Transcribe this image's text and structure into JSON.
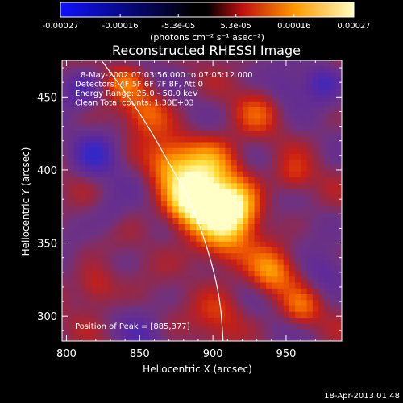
{
  "chart_data": {
    "type": "heatmap",
    "title": "Reconstructed RHESSI Image",
    "xlabel": "Heliocentric X (arcsec)",
    "ylabel": "Heliocentric Y (arcsec)",
    "xlim": [
      797,
      988
    ],
    "ylim": [
      283,
      475
    ],
    "x_ticks": [
      800,
      850,
      900,
      950
    ],
    "y_ticks": [
      300,
      350,
      400,
      450
    ],
    "colorbar": {
      "range": [
        -0.00027,
        0.00027
      ],
      "tick_values": [
        -0.00027,
        -0.00016,
        -5.3e-05,
        5.3e-05,
        0.00016,
        0.00027
      ],
      "tick_labels": [
        "-0.00027",
        "-0.00016",
        "-5.3e-05",
        "5.3e-05",
        "0.00016",
        "0.00027"
      ],
      "unit": "(photons cm⁻² s⁻¹ asec⁻²)"
    },
    "annotations": [
      "8-May-2002 07:03:56.000 to 07:05:12.000",
      "Detectors: 4F 5F 6F 7F 8F, Att 0",
      "Energy Range: 25.0 - 50.0 keV",
      "Clean    Total counts: 1.30E+03"
    ],
    "peak_label": "Position of Peak = [885,377]",
    "peak": [
      885,
      377
    ],
    "sources": [
      {
        "x": 885,
        "y": 377,
        "amp": 1.0,
        "sigma": 13
      },
      {
        "x": 913,
        "y": 374,
        "amp": 0.95,
        "sigma": 13
      },
      {
        "x": 898,
        "y": 402,
        "amp": 0.65,
        "sigma": 15
      },
      {
        "x": 870,
        "y": 405,
        "amp": 0.5,
        "sigma": 12
      },
      {
        "x": 905,
        "y": 350,
        "amp": 0.45,
        "sigma": 14
      },
      {
        "x": 855,
        "y": 440,
        "amp": 0.45,
        "sigma": 11
      },
      {
        "x": 840,
        "y": 460,
        "amp": 0.4,
        "sigma": 9
      },
      {
        "x": 940,
        "y": 330,
        "amp": 0.55,
        "sigma": 11
      },
      {
        "x": 955,
        "y": 395,
        "amp": 0.3,
        "sigma": 9
      },
      {
        "x": 960,
        "y": 305,
        "amp": 0.4,
        "sigma": 9
      },
      {
        "x": 820,
        "y": 320,
        "amp": 0.35,
        "sigma": 10
      },
      {
        "x": 905,
        "y": 300,
        "amp": 0.3,
        "sigma": 12
      },
      {
        "x": 930,
        "y": 440,
        "amp": 0.3,
        "sigma": 11
      },
      {
        "x": 820,
        "y": 410,
        "amp": -0.45,
        "sigma": 10
      },
      {
        "x": 810,
        "y": 455,
        "amp": -0.35,
        "sigma": 9
      },
      {
        "x": 975,
        "y": 460,
        "amp": -0.4,
        "sigma": 9
      },
      {
        "x": 975,
        "y": 330,
        "amp": -0.25,
        "sigma": 9
      },
      {
        "x": 850,
        "y": 285,
        "amp": -0.25,
        "sigma": 9
      },
      {
        "x": 830,
        "y": 370,
        "amp": -0.2,
        "sigma": 9
      },
      {
        "x": 950,
        "y": 455,
        "amp": -0.2,
        "sigma": 9
      }
    ],
    "limb_curve": [
      [
        818,
        483
      ],
      [
        850,
        440
      ],
      [
        870,
        405
      ],
      [
        885,
        378
      ],
      [
        897,
        345
      ],
      [
        905,
        312
      ],
      [
        907,
        283
      ]
    ]
  },
  "footer": {
    "timestamp": "18-Apr-2013 01:48"
  }
}
